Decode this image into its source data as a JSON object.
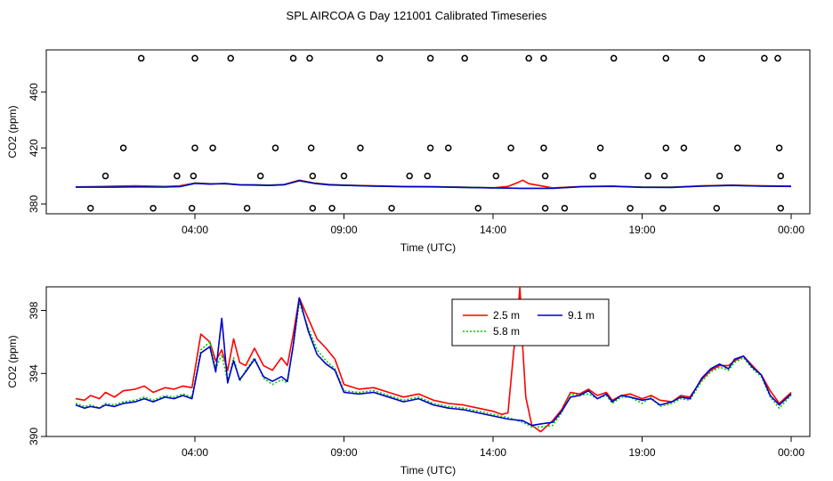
{
  "figure_title": "SPL AIRCOA G  Day 121001  Calibrated Timeseries",
  "chart_data": [
    {
      "type": "scatter",
      "title": "SPL AIRCOA G  Day 121001  Calibrated Timeseries",
      "xlabel": "Time (UTC)",
      "ylabel": "CO2 (ppm)",
      "xlim": [
        0,
        24
      ],
      "ylim": [
        373,
        490
      ],
      "x_ticks": [
        {
          "x": 4,
          "label": "04:00"
        },
        {
          "x": 9,
          "label": "09:00"
        },
        {
          "x": 14,
          "label": "14:00"
        },
        {
          "x": 19,
          "label": "19:00"
        },
        {
          "x": 24,
          "label": "00:00"
        }
      ],
      "y_ticks": [
        {
          "y": 380,
          "label": "380"
        },
        {
          "y": 420,
          "label": "420"
        },
        {
          "y": 460,
          "label": "460"
        }
      ],
      "reference_points": [
        [
          2.2,
          484
        ],
        [
          4.0,
          484
        ],
        [
          5.2,
          484
        ],
        [
          7.3,
          484
        ],
        [
          7.85,
          484
        ],
        [
          10.2,
          484
        ],
        [
          11.9,
          484
        ],
        [
          13.05,
          484
        ],
        [
          15.2,
          484
        ],
        [
          15.7,
          484
        ],
        [
          18.05,
          484
        ],
        [
          19.8,
          484
        ],
        [
          21.0,
          484
        ],
        [
          23.1,
          484
        ],
        [
          23.55,
          484
        ],
        [
          1.6,
          420
        ],
        [
          4.0,
          420
        ],
        [
          4.6,
          420
        ],
        [
          6.7,
          420
        ],
        [
          7.9,
          420
        ],
        [
          9.55,
          420
        ],
        [
          11.9,
          420
        ],
        [
          12.5,
          420
        ],
        [
          14.6,
          420
        ],
        [
          15.7,
          420
        ],
        [
          17.6,
          420
        ],
        [
          19.8,
          420
        ],
        [
          20.4,
          420
        ],
        [
          22.2,
          420
        ],
        [
          23.6,
          420
        ],
        [
          1.0,
          400
        ],
        [
          3.4,
          400
        ],
        [
          3.95,
          400
        ],
        [
          6.2,
          400
        ],
        [
          7.95,
          400
        ],
        [
          9.0,
          400
        ],
        [
          11.2,
          400
        ],
        [
          11.8,
          400
        ],
        [
          14.1,
          400
        ],
        [
          15.75,
          400
        ],
        [
          17.35,
          400
        ],
        [
          19.2,
          400
        ],
        [
          19.75,
          400
        ],
        [
          21.6,
          400
        ],
        [
          23.65,
          400
        ],
        [
          0.5,
          377
        ],
        [
          2.6,
          377
        ],
        [
          3.9,
          377
        ],
        [
          5.75,
          377
        ],
        [
          7.95,
          377
        ],
        [
          8.6,
          377
        ],
        [
          10.6,
          377
        ],
        [
          13.5,
          377
        ],
        [
          15.75,
          377
        ],
        [
          16.4,
          377
        ],
        [
          18.6,
          377
        ],
        [
          19.7,
          377
        ],
        [
          21.5,
          377
        ],
        [
          23.65,
          377
        ]
      ],
      "series": [
        {
          "name": "2.5 m",
          "color": "#ff0000",
          "x": [
            0,
            1,
            2,
            3,
            3.5,
            4,
            4.5,
            5,
            5.5,
            6,
            6.5,
            7,
            7.5,
            8,
            8.5,
            9,
            10,
            11,
            12,
            13,
            14,
            14.5,
            14.8,
            15.0,
            15.2,
            16,
            17,
            18,
            19,
            20,
            21,
            22,
            23,
            24
          ],
          "y": [
            392.2,
            392.5,
            393,
            392.5,
            393,
            395,
            394.5,
            394.3,
            393.8,
            393.7,
            393.5,
            394,
            397,
            395,
            394,
            393.5,
            393,
            392.5,
            392.4,
            392,
            391.5,
            392.5,
            395,
            397,
            394.5,
            391.5,
            392.5,
            392.8,
            392,
            392,
            393,
            393.5,
            393,
            392.8
          ]
        },
        {
          "name": "5.8 m",
          "color": "#00cc00",
          "x": [
            0,
            1,
            2,
            3,
            3.5,
            4,
            4.5,
            5,
            5.5,
            6,
            6.5,
            7,
            7.5,
            8,
            8.5,
            9,
            10,
            11,
            12,
            13,
            14,
            15,
            16,
            17,
            18,
            19,
            20,
            21,
            22,
            23,
            24
          ],
          "y": [
            392,
            392.1,
            392.3,
            392.2,
            392.5,
            394.8,
            394.3,
            394.5,
            393.7,
            393.6,
            393.3,
            393.8,
            396.5,
            394.8,
            393.7,
            393.4,
            392.8,
            392.4,
            392.3,
            391.9,
            391.6,
            391.2,
            391.3,
            392.4,
            392.7,
            392,
            391.9,
            392.8,
            393.3,
            392.8,
            392.6
          ]
        },
        {
          "name": "9.1 m",
          "color": "#0000cc",
          "x": [
            0,
            1,
            2,
            3,
            3.5,
            4,
            4.5,
            5,
            5.5,
            6,
            6.5,
            7,
            7.5,
            8,
            8.5,
            9,
            10,
            11,
            12,
            13,
            14,
            15,
            16,
            17,
            18,
            19,
            20,
            21,
            22,
            23,
            24
          ],
          "y": [
            392,
            392,
            392.2,
            392.1,
            392.4,
            394.6,
            394.2,
            394.7,
            393.6,
            393.5,
            393.2,
            393.7,
            396.6,
            394.7,
            393.6,
            393.3,
            392.7,
            392.3,
            392.2,
            391.8,
            391.5,
            391.1,
            391.2,
            392.3,
            392.6,
            391.9,
            391.8,
            392.7,
            393.2,
            392.7,
            392.5
          ]
        }
      ]
    },
    {
      "type": "line",
      "xlabel": "Time (UTC)",
      "ylabel": "CO2 (ppm)",
      "xlim": [
        0,
        24
      ],
      "ylim": [
        390,
        399.5
      ],
      "x_ticks": [
        {
          "x": 4,
          "label": "04:00"
        },
        {
          "x": 9,
          "label": "09:00"
        },
        {
          "x": 14,
          "label": "14:00"
        },
        {
          "x": 19,
          "label": "19:00"
        },
        {
          "x": 24,
          "label": "00:00"
        }
      ],
      "y_ticks": [
        {
          "y": 390,
          "label": "390"
        },
        {
          "y": 394,
          "label": "394"
        },
        {
          "y": 398,
          "label": "398"
        }
      ],
      "legend_position": "top-center",
      "series": [
        {
          "name": "2.5 m",
          "color": "#ff0000",
          "dash": "",
          "x": [
            0,
            0.3,
            0.5,
            0.8,
            1,
            1.3,
            1.6,
            2,
            2.3,
            2.6,
            3,
            3.3,
            3.6,
            3.9,
            4.2,
            4.5,
            4.7,
            4.9,
            5.1,
            5.3,
            5.5,
            5.7,
            6,
            6.3,
            6.6,
            6.9,
            7.1,
            7.3,
            7.5,
            7.8,
            8.1,
            8.4,
            8.7,
            9,
            9.5,
            10,
            10.5,
            11,
            11.5,
            12,
            12.5,
            13,
            13.5,
            14,
            14.3,
            14.5,
            14.6,
            14.7,
            14.8,
            14.9,
            15,
            15.1,
            15.3,
            15.6,
            16,
            16.3,
            16.6,
            16.9,
            17.2,
            17.5,
            17.8,
            18,
            18.3,
            18.6,
            19,
            19.3,
            19.6,
            20,
            20.3,
            20.6,
            21,
            21.3,
            21.6,
            21.9,
            22.1,
            22.4,
            22.7,
            23,
            23.3,
            23.6,
            24
          ],
          "y": [
            392.4,
            392.3,
            392.6,
            392.4,
            392.8,
            392.5,
            392.9,
            393,
            393.2,
            392.8,
            393.1,
            393,
            393.2,
            393.1,
            396.5,
            396,
            394.8,
            395.5,
            394.2,
            396.2,
            394.7,
            394.5,
            395.6,
            394.5,
            394.2,
            395,
            394.5,
            396.5,
            398.8,
            397.5,
            396.2,
            395.6,
            394.9,
            393.3,
            393,
            393.1,
            392.8,
            392.5,
            392.7,
            392.3,
            392.1,
            392,
            391.8,
            391.6,
            391.4,
            391.5,
            393.5,
            395.5,
            397,
            399.5,
            395.5,
            392.5,
            390.7,
            390.3,
            391.0,
            391.7,
            392.8,
            392.7,
            393.0,
            392.6,
            392.8,
            392.3,
            392.6,
            392.7,
            392.4,
            392.6,
            392.3,
            392.2,
            392.6,
            392.5,
            393.6,
            394.2,
            394.5,
            394.5,
            394.8,
            395.1,
            394.5,
            393.9,
            392.9,
            392.1,
            392.8
          ]
        },
        {
          "name": "5.8 m",
          "color": "#00cc00",
          "dash": "2,2",
          "x": [
            0,
            0.3,
            0.5,
            0.8,
            1,
            1.3,
            1.6,
            2,
            2.3,
            2.6,
            3,
            3.3,
            3.6,
            3.9,
            4.2,
            4.5,
            4.7,
            4.9,
            5.1,
            5.3,
            5.5,
            5.7,
            6,
            6.3,
            6.6,
            6.9,
            7.1,
            7.3,
            7.5,
            7.8,
            8.1,
            8.4,
            8.7,
            9,
            9.5,
            10,
            10.5,
            11,
            11.5,
            12,
            12.5,
            13,
            13.5,
            14,
            14.5,
            15,
            15.3,
            15.6,
            16,
            16.3,
            16.6,
            16.9,
            17.2,
            17.5,
            17.8,
            18,
            18.3,
            18.6,
            19,
            19.3,
            19.6,
            20,
            20.3,
            20.6,
            21,
            21.3,
            21.6,
            21.9,
            22.1,
            22.4,
            22.7,
            23,
            23.3,
            23.6,
            24
          ],
          "y": [
            392.1,
            391.9,
            392,
            391.8,
            392.1,
            392,
            392.2,
            392.3,
            392.5,
            392.3,
            392.6,
            392.5,
            392.7,
            392.5,
            395.5,
            396,
            394.3,
            395.2,
            393.5,
            395,
            393.5,
            394.2,
            395,
            393.7,
            393.3,
            393.6,
            393.4,
            395.7,
            398.5,
            396.9,
            395.5,
            394.8,
            394.3,
            392.9,
            392.8,
            392.9,
            392.6,
            392.3,
            392.5,
            392.1,
            391.9,
            391.8,
            391.6,
            391.4,
            391.2,
            390.9,
            390.6,
            390.6,
            390.7,
            391.5,
            392.7,
            392.6,
            392.7,
            392.4,
            392.6,
            392.1,
            392.5,
            392.5,
            392.1,
            392.5,
            391.9,
            392.1,
            392.4,
            392.3,
            393.5,
            394.1,
            394.4,
            394.2,
            394.7,
            395,
            394.3,
            393.8,
            392.5,
            391.8,
            392.6
          ]
        },
        {
          "name": "9.1 m",
          "color": "#0000cc",
          "dash": "",
          "x": [
            0,
            0.3,
            0.5,
            0.8,
            1,
            1.3,
            1.6,
            2,
            2.3,
            2.6,
            3,
            3.3,
            3.6,
            3.9,
            4.2,
            4.5,
            4.7,
            4.9,
            5.1,
            5.3,
            5.5,
            5.7,
            6,
            6.3,
            6.6,
            6.9,
            7.1,
            7.3,
            7.5,
            7.8,
            8.1,
            8.4,
            8.7,
            9,
            9.5,
            10,
            10.5,
            11,
            11.5,
            12,
            12.5,
            13,
            13.5,
            14,
            14.5,
            15,
            15.3,
            15.6,
            16,
            16.3,
            16.6,
            16.9,
            17.2,
            17.5,
            17.8,
            18,
            18.3,
            18.6,
            19,
            19.3,
            19.6,
            20,
            20.3,
            20.6,
            21,
            21.3,
            21.6,
            21.9,
            22.1,
            22.4,
            22.7,
            23,
            23.3,
            23.6,
            24
          ],
          "y": [
            392,
            391.8,
            391.9,
            391.8,
            392,
            391.9,
            392.1,
            392.2,
            392.4,
            392.2,
            392.5,
            392.4,
            392.6,
            392.4,
            395.3,
            395.7,
            394.1,
            397.5,
            393.4,
            394.8,
            393.6,
            394.1,
            394.9,
            393.8,
            393.5,
            393.8,
            393.5,
            395.8,
            398.8,
            396.7,
            395.2,
            394.6,
            394.2,
            392.8,
            392.7,
            392.8,
            392.5,
            392.2,
            392.4,
            392,
            391.8,
            391.7,
            391.5,
            391.3,
            391.1,
            391.0,
            390.7,
            390.8,
            390.9,
            391.6,
            392.5,
            392.6,
            392.9,
            392.4,
            392.7,
            392.2,
            392.6,
            392.5,
            392.3,
            392.4,
            392.0,
            392.2,
            392.5,
            392.4,
            393.7,
            394.3,
            394.6,
            394.3,
            394.9,
            395.1,
            394.4,
            393.9,
            392.6,
            392.0,
            392.7
          ]
        }
      ]
    }
  ]
}
